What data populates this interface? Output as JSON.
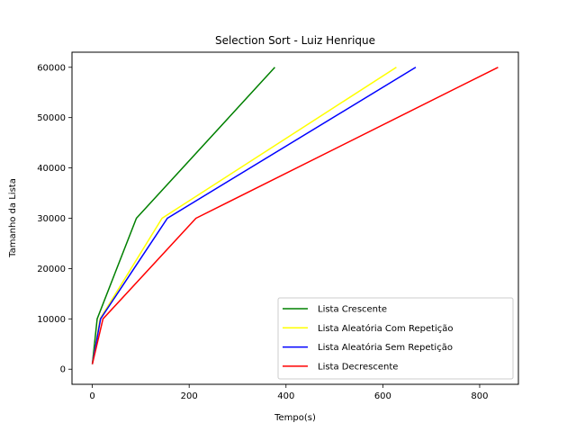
{
  "chart_data": {
    "type": "line",
    "title": "Selection Sort - Luiz Henrique",
    "xlabel": "Tempo(s)",
    "ylabel": "Tamanho da Lista",
    "xlim": [
      -42,
      880
    ],
    "ylim": [
      -3000,
      63000
    ],
    "xticks": [
      0,
      200,
      400,
      600,
      800
    ],
    "yticks": [
      0,
      10000,
      20000,
      30000,
      40000,
      50000,
      60000
    ],
    "grid": false,
    "legend_position": "lower-right",
    "series": [
      {
        "name": "Lista Crescente",
        "color": "#008000",
        "x": [
          0,
          10,
          91,
          377
        ],
        "y": [
          1000,
          10000,
          30000,
          60000
        ]
      },
      {
        "name": "Lista Aleatória Com Repetição",
        "color": "#ffff00",
        "x": [
          0,
          16,
          144,
          628
        ],
        "y": [
          1000,
          10000,
          30000,
          60000
        ]
      },
      {
        "name": "Lista Aleatória Sem Repetição",
        "color": "#0000ff",
        "x": [
          0,
          17,
          155,
          668
        ],
        "y": [
          1000,
          10000,
          30000,
          60000
        ]
      },
      {
        "name": "Lista Decrescente",
        "color": "#ff0000",
        "x": [
          0,
          22,
          214,
          838
        ],
        "y": [
          1000,
          10000,
          30000,
          60000
        ]
      }
    ]
  }
}
